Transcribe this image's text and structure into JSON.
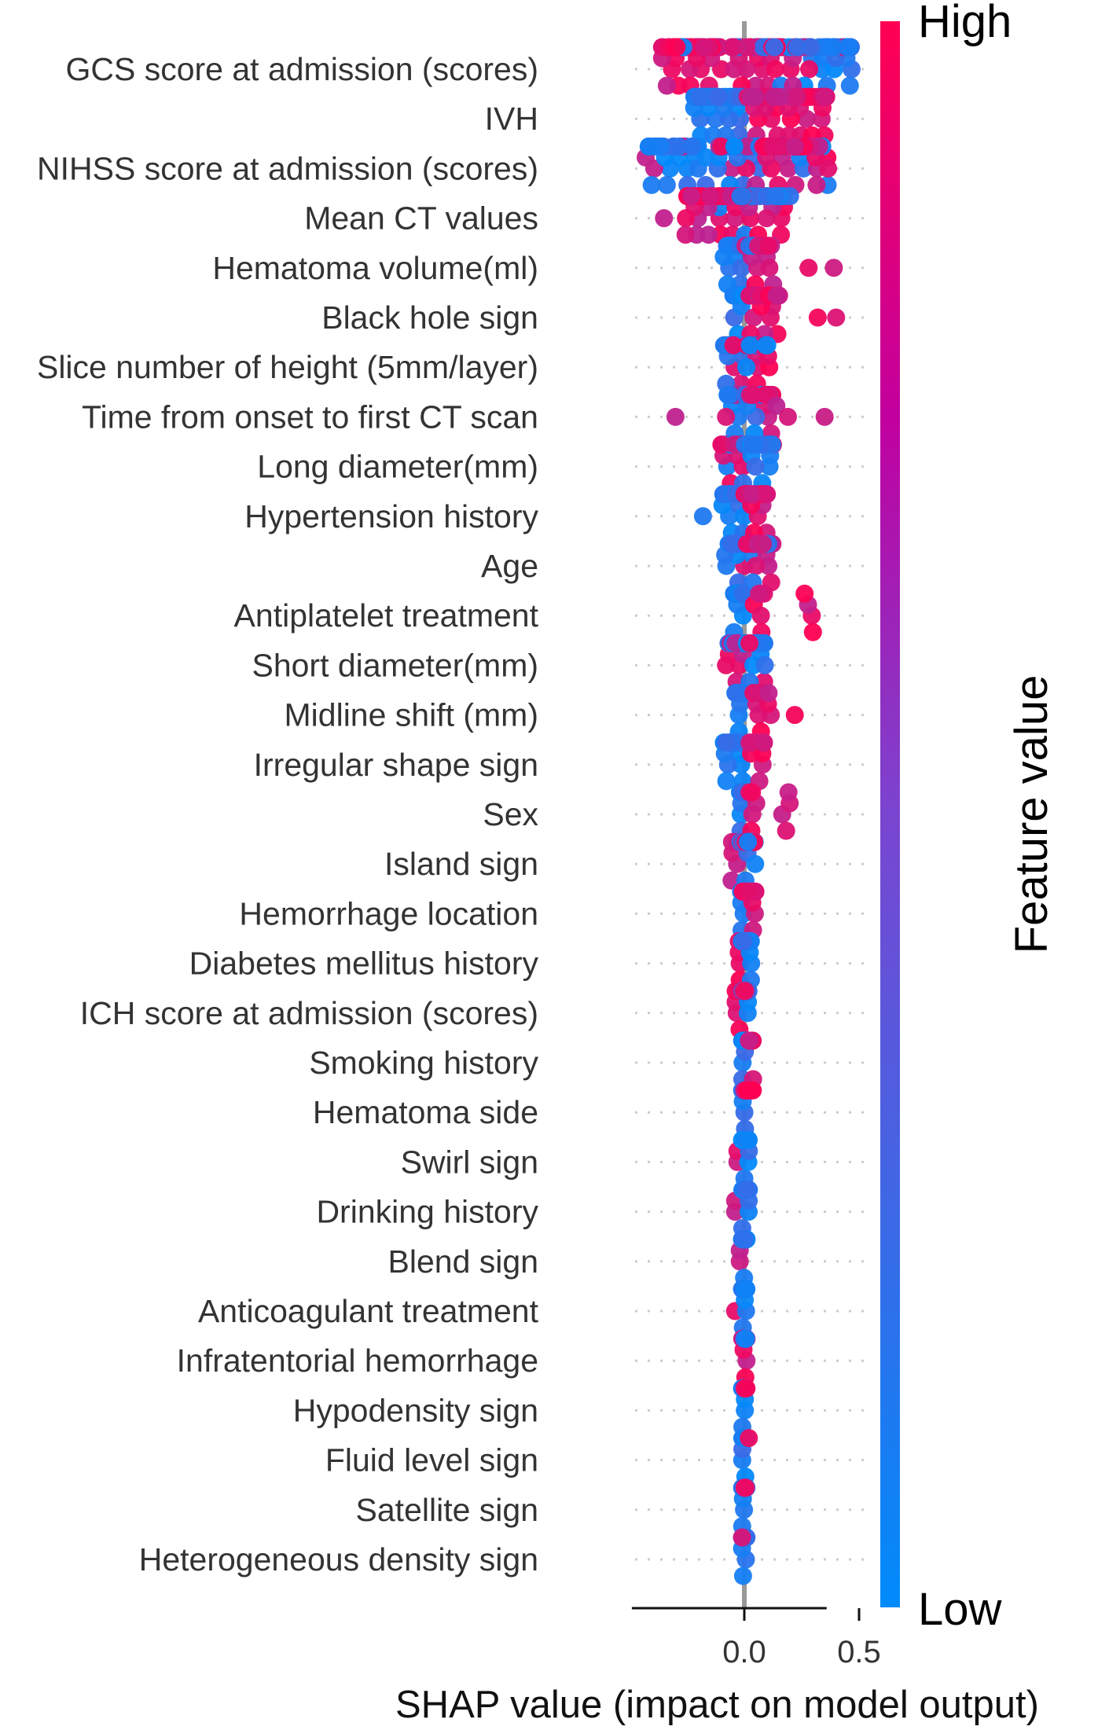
{
  "chart_data": {
    "type": "scatter",
    "subtype": "shap-beeswarm",
    "xlabel": "SHAP value (impact on model output)",
    "xlim": [
      -0.49,
      0.53
    ],
    "xticks": [
      {
        "value": 0.0,
        "label": "0.0"
      },
      {
        "value": 0.5,
        "label": "0.5"
      }
    ],
    "colorbar": {
      "label": "Feature value",
      "high_label": "High",
      "low_label": "Low",
      "high_color": "#ff0052",
      "low_color": "#008bfb"
    },
    "zero_line_color": "#999999",
    "features": [
      {
        "name": "GCS score at admission (scores)",
        "clusters": [
          [
            -0.36,
            -0.1,
            0.95,
            60
          ],
          [
            -0.1,
            0.12,
            0.75,
            30
          ],
          [
            0.12,
            0.47,
            0.3,
            55
          ]
        ]
      },
      {
        "name": "IVH",
        "clusters": [
          [
            -0.22,
            0.0,
            0.0,
            55
          ],
          [
            0.01,
            0.38,
            1.0,
            50
          ]
        ]
      },
      {
        "name": "NIHSS score at admission (scores)",
        "clusters": [
          [
            -0.43,
            -0.12,
            0.05,
            30
          ],
          [
            -0.12,
            0.08,
            0.3,
            70
          ],
          [
            0.08,
            0.38,
            0.8,
            45
          ]
        ]
      },
      {
        "name": "Mean  CT values",
        "clusters": [
          [
            -0.35,
            -0.35,
            1.0,
            1
          ],
          [
            -0.26,
            -0.02,
            0.95,
            45
          ],
          [
            -0.02,
            0.05,
            0.5,
            30
          ],
          [
            0.05,
            0.2,
            0.4,
            15
          ]
        ]
      },
      {
        "name": "Hematoma volume(ml)",
        "clusters": [
          [
            -0.09,
            0.0,
            0.1,
            25
          ],
          [
            0.0,
            0.13,
            0.85,
            25
          ],
          [
            0.28,
            0.28,
            1.0,
            1
          ],
          [
            0.39,
            0.39,
            1.0,
            1
          ]
        ]
      },
      {
        "name": "Black hole sign",
        "clusters": [
          [
            -0.05,
            0.0,
            0.0,
            35
          ],
          [
            0.02,
            0.16,
            1.0,
            30
          ],
          [
            0.32,
            0.32,
            1.0,
            1
          ],
          [
            0.4,
            0.4,
            1.0,
            1
          ]
        ]
      },
      {
        "name": "Slice number of height (5mm/layer)",
        "clusters": [
          [
            -0.09,
            0.0,
            0.3,
            25
          ],
          [
            0.0,
            0.11,
            0.6,
            20
          ]
        ]
      },
      {
        "name": "Time from onset to first CT scan",
        "clusters": [
          [
            -0.3,
            -0.3,
            1.0,
            1
          ],
          [
            -0.08,
            0.0,
            0.15,
            25
          ],
          [
            0.0,
            0.14,
            0.7,
            20
          ],
          [
            0.19,
            0.19,
            0.6,
            1
          ],
          [
            0.35,
            0.35,
            1.0,
            1
          ]
        ]
      },
      {
        "name": "Long diameter(mm)",
        "clusters": [
          [
            -0.1,
            0.0,
            0.65,
            25
          ],
          [
            0.0,
            0.13,
            0.15,
            25
          ]
        ]
      },
      {
        "name": "Hypertension history",
        "clusters": [
          [
            -0.18,
            -0.18,
            0.0,
            1
          ],
          [
            -0.1,
            0.0,
            0.0,
            25
          ],
          [
            0.0,
            0.1,
            1.0,
            25
          ]
        ]
      },
      {
        "name": "Age",
        "clusters": [
          [
            -0.09,
            0.0,
            0.2,
            25
          ],
          [
            0.0,
            0.13,
            0.85,
            25
          ]
        ]
      },
      {
        "name": "Antiplatelet treatment",
        "clusters": [
          [
            -0.05,
            0.0,
            0.0,
            30
          ],
          [
            0.04,
            0.09,
            1.0,
            6
          ],
          [
            0.26,
            0.31,
            1.0,
            4
          ]
        ]
      },
      {
        "name": "Short diameter(mm)",
        "clusters": [
          [
            -0.08,
            0.0,
            0.6,
            25
          ],
          [
            0.0,
            0.09,
            0.15,
            25
          ]
        ]
      },
      {
        "name": "Midline shift (mm)",
        "clusters": [
          [
            -0.04,
            0.0,
            0.0,
            30
          ],
          [
            0.02,
            0.13,
            1.0,
            10
          ],
          [
            0.22,
            0.22,
            1.0,
            1
          ]
        ]
      },
      {
        "name": "Irregular shape sign",
        "clusters": [
          [
            -0.09,
            0.0,
            0.0,
            30
          ],
          [
            0.02,
            0.09,
            1.0,
            12
          ]
        ]
      },
      {
        "name": "Sex",
        "clusters": [
          [
            -0.02,
            0.0,
            0.0,
            30
          ],
          [
            0.02,
            0.06,
            1.0,
            6
          ],
          [
            0.16,
            0.2,
            1.0,
            4
          ]
        ]
      },
      {
        "name": "Island sign",
        "clusters": [
          [
            -0.06,
            -0.03,
            1.0,
            5
          ],
          [
            -0.02,
            0.05,
            0.15,
            30
          ]
        ]
      },
      {
        "name": "Hemorrhage location",
        "clusters": [
          [
            -0.02,
            0.0,
            0.0,
            12
          ],
          [
            -0.01,
            0.05,
            1.0,
            30
          ]
        ]
      },
      {
        "name": "Diabetes mellitus history",
        "clusters": [
          [
            -0.03,
            -0.02,
            1.0,
            4
          ],
          [
            -0.01,
            0.03,
            0.0,
            35
          ]
        ]
      },
      {
        "name": "ICH score at admission (scores)",
        "clusters": [
          [
            -0.04,
            -0.02,
            1.0,
            5
          ],
          [
            -0.01,
            0.02,
            0.3,
            35
          ]
        ]
      },
      {
        "name": "Smoking history",
        "clusters": [
          [
            -0.01,
            0.01,
            0.0,
            35
          ],
          [
            0.02,
            0.04,
            1.0,
            8
          ]
        ]
      },
      {
        "name": "Hematoma side",
        "clusters": [
          [
            -0.01,
            0.01,
            0.0,
            30
          ],
          [
            0.0,
            0.04,
            1.0,
            12
          ]
        ]
      },
      {
        "name": "Swirl sign",
        "clusters": [
          [
            -0.03,
            -0.03,
            1.0,
            2
          ],
          [
            -0.01,
            0.02,
            0.0,
            40
          ]
        ]
      },
      {
        "name": "Drinking history",
        "clusters": [
          [
            -0.04,
            -0.04,
            1.0,
            2
          ],
          [
            -0.01,
            0.02,
            0.0,
            40
          ]
        ]
      },
      {
        "name": "Blend sign",
        "clusters": [
          [
            -0.02,
            -0.02,
            1.0,
            2
          ],
          [
            -0.01,
            0.01,
            0.0,
            45
          ]
        ]
      },
      {
        "name": "Anticoagulant treatment",
        "clusters": [
          [
            -0.04,
            -0.04,
            1.0,
            1
          ],
          [
            -0.01,
            0.01,
            0.0,
            45
          ]
        ]
      },
      {
        "name": "Infratentorial hemorrhage",
        "clusters": [
          [
            -0.01,
            0.01,
            1.0,
            30
          ],
          [
            0.0,
            0.01,
            0.0,
            8
          ]
        ]
      },
      {
        "name": "Hypodensity sign",
        "clusters": [
          [
            -0.01,
            0.01,
            0.1,
            35
          ],
          [
            0.0,
            0.01,
            1.0,
            6
          ]
        ]
      },
      {
        "name": "Fluid level sign",
        "clusters": [
          [
            -0.01,
            0.01,
            0.0,
            45
          ],
          [
            0.02,
            0.02,
            1.0,
            1
          ]
        ]
      },
      {
        "name": "Satellite sign",
        "clusters": [
          [
            -0.01,
            0.01,
            0.0,
            45
          ],
          [
            0.0,
            0.01,
            1.0,
            4
          ]
        ]
      },
      {
        "name": "Heterogeneous density sign",
        "clusters": [
          [
            -0.01,
            0.01,
            0.0,
            45
          ],
          [
            -0.01,
            -0.01,
            1.0,
            1
          ]
        ]
      }
    ]
  }
}
